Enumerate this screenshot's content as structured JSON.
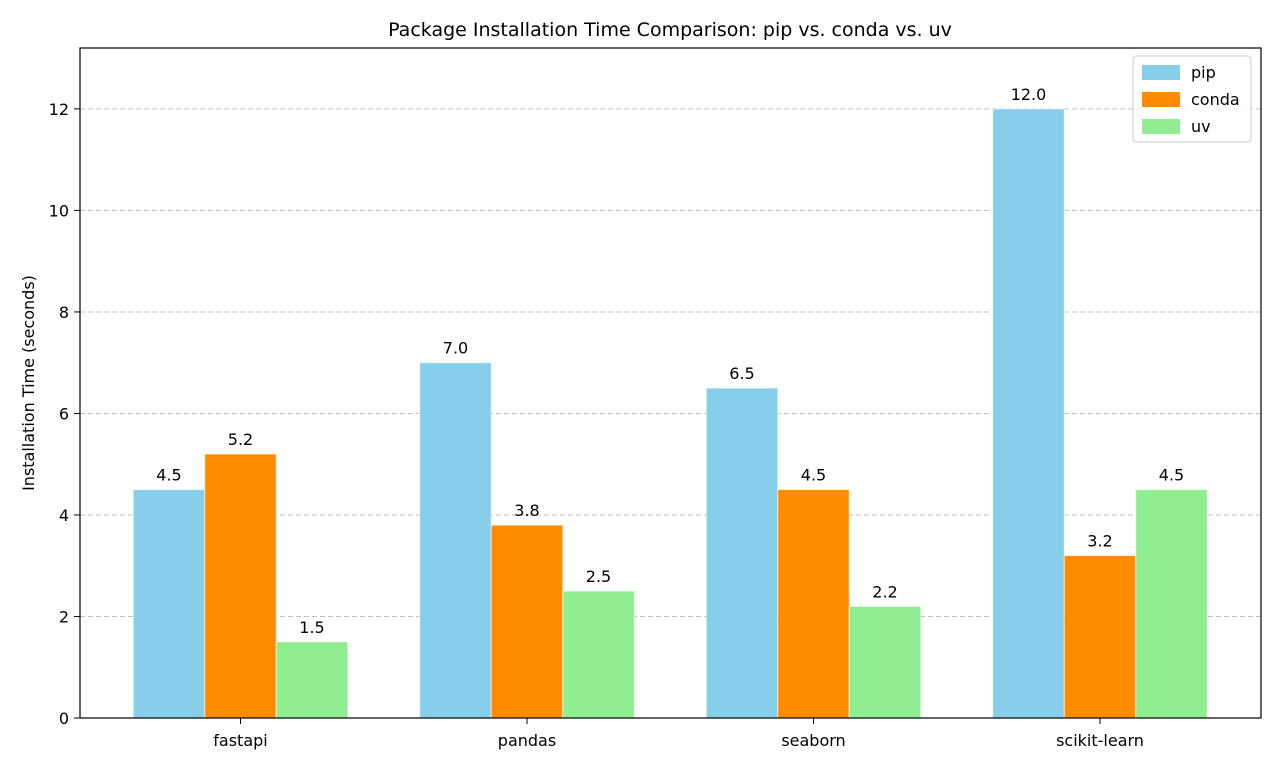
{
  "chart_data": {
    "type": "bar",
    "title": "Package Installation Time Comparison: pip vs. conda vs. uv",
    "xlabel": "",
    "ylabel": "Installation Time (seconds)",
    "categories": [
      "fastapi",
      "pandas",
      "seaborn",
      "scikit-learn"
    ],
    "series": [
      {
        "name": "pip",
        "color": "#87ceeb",
        "values": [
          4.5,
          7.0,
          6.5,
          12.0
        ],
        "labels": [
          "4.5",
          "7.0",
          "6.5",
          "12.0"
        ]
      },
      {
        "name": "conda",
        "color": "#ff8c00",
        "values": [
          5.2,
          3.8,
          4.5,
          3.2
        ],
        "labels": [
          "5.2",
          "3.8",
          "4.5",
          "3.2"
        ]
      },
      {
        "name": "uv",
        "color": "#90ee90",
        "values": [
          1.5,
          2.5,
          2.2,
          4.5
        ],
        "labels": [
          "1.5",
          "2.5",
          "2.2",
          "4.5"
        ]
      }
    ],
    "ylim": [
      0,
      13.2
    ],
    "yticks": [
      0,
      2,
      4,
      6,
      8,
      10,
      12
    ],
    "ytick_labels": [
      "0",
      "2",
      "4",
      "6",
      "8",
      "10",
      "12"
    ],
    "grid": "y-dashed",
    "legend_position": "top-right"
  }
}
